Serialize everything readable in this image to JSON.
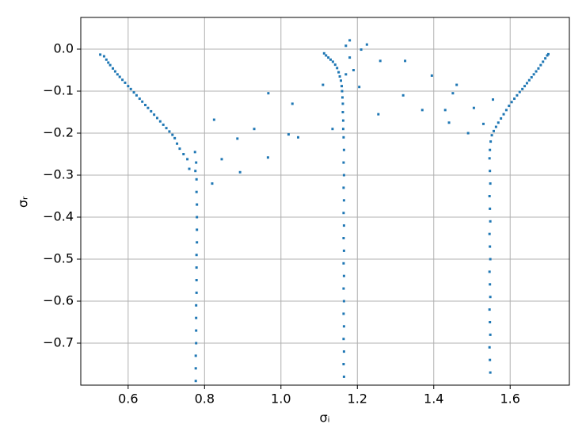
{
  "chart_data": {
    "type": "scatter",
    "xlabel": "σᵢ",
    "ylabel": "σᵣ",
    "color": "#1f77b4",
    "grid": true,
    "xlim": [
      0.476,
      1.755
    ],
    "ylim": [
      -0.8,
      0.0755
    ],
    "xticks": [
      0.6,
      0.8,
      {
        "value": 1,
        "label": "1.0"
      },
      1.2,
      1.4,
      1.6
    ],
    "yticks": [
      {
        "value": 0,
        "label": "0.0"
      },
      {
        "value": -0.1,
        "label": "−0.1"
      },
      {
        "value": -0.2,
        "label": "−0.2"
      },
      {
        "value": -0.3,
        "label": "−0.3"
      },
      {
        "value": -0.4,
        "label": "−0.4"
      },
      {
        "value": -0.5,
        "label": "−0.5"
      },
      {
        "value": -0.6,
        "label": "−0.6"
      },
      {
        "value": -0.7,
        "label": "−0.7"
      }
    ],
    "x": [
      0.527,
      0.537,
      0.543,
      0.548,
      0.553,
      0.56,
      0.566,
      0.572,
      0.578,
      0.585,
      0.592,
      0.6,
      0.607,
      0.615,
      0.622,
      0.63,
      0.637,
      0.645,
      0.652,
      0.66,
      0.668,
      0.676,
      0.684,
      0.692,
      0.7,
      0.708,
      0.716,
      0.722,
      0.728,
      0.735,
      0.745,
      0.755,
      0.76,
      0.775,
      0.778,
      0.776,
      0.779,
      0.779,
      0.78,
      0.78,
      0.78,
      0.78,
      0.779,
      0.779,
      0.779,
      0.779,
      0.778,
      0.778,
      0.778,
      0.778,
      0.777,
      0.777,
      0.777,
      1.113,
      1.118,
      1.124,
      1.13,
      1.136,
      1.142,
      1.147,
      1.151,
      1.154,
      1.157,
      1.159,
      1.16,
      1.161,
      1.162,
      1.162,
      1.163,
      1.163,
      1.164,
      1.165,
      1.164,
      1.165,
      1.164,
      1.165,
      1.164,
      1.165,
      1.164,
      1.165,
      1.164,
      1.165,
      1.164,
      1.165,
      1.164,
      1.165,
      1.164,
      1.165,
      1.164,
      1.165,
      1.7,
      1.697,
      1.692,
      1.686,
      1.68,
      1.674,
      1.668,
      1.662,
      1.656,
      1.65,
      1.644,
      1.638,
      1.632,
      1.625,
      1.618,
      1.611,
      1.604,
      1.597,
      1.59,
      1.583,
      1.576,
      1.569,
      1.563,
      1.557,
      1.552,
      1.549,
      1.547,
      1.546,
      1.547,
      1.548,
      1.546,
      1.547,
      1.548,
      1.546,
      1.547,
      1.548,
      1.546,
      1.547,
      1.548,
      1.546,
      1.547,
      1.548,
      1.546,
      1.547,
      1.548,
      0.825,
      0.82,
      0.845,
      0.886,
      0.893,
      0.93,
      0.966,
      0.967,
      1.02,
      1.03,
      1.045,
      1.11,
      1.135,
      1.17,
      1.18,
      1.18,
      1.19,
      1.17,
      1.205,
      1.21,
      1.225,
      1.255,
      1.26,
      1.32,
      1.325,
      1.37,
      1.395,
      1.43,
      1.44,
      1.45,
      1.46,
      1.49,
      1.505,
      1.53,
      1.555
    ],
    "y": [
      -0.013,
      -0.017,
      -0.025,
      -0.032,
      -0.038,
      -0.046,
      -0.053,
      -0.06,
      -0.066,
      -0.073,
      -0.08,
      -0.088,
      -0.095,
      -0.103,
      -0.11,
      -0.118,
      -0.125,
      -0.133,
      -0.14,
      -0.148,
      -0.156,
      -0.164,
      -0.172,
      -0.18,
      -0.188,
      -0.196,
      -0.204,
      -0.212,
      -0.225,
      -0.237,
      -0.25,
      -0.262,
      -0.285,
      -0.245,
      -0.27,
      -0.29,
      -0.31,
      -0.34,
      -0.37,
      -0.4,
      -0.43,
      -0.46,
      -0.49,
      -0.52,
      -0.55,
      -0.58,
      -0.61,
      -0.64,
      -0.67,
      -0.7,
      -0.73,
      -0.76,
      -0.79,
      -0.01,
      -0.015,
      -0.02,
      -0.025,
      -0.03,
      -0.037,
      -0.045,
      -0.055,
      -0.065,
      -0.075,
      -0.088,
      -0.1,
      -0.115,
      -0.13,
      -0.15,
      -0.17,
      -0.19,
      -0.21,
      -0.24,
      -0.27,
      -0.3,
      -0.33,
      -0.36,
      -0.39,
      -0.42,
      -0.45,
      -0.48,
      -0.51,
      -0.54,
      -0.57,
      -0.6,
      -0.63,
      -0.66,
      -0.69,
      -0.72,
      -0.75,
      -0.78,
      -0.012,
      -0.015,
      -0.022,
      -0.03,
      -0.038,
      -0.046,
      -0.053,
      -0.06,
      -0.067,
      -0.074,
      -0.081,
      -0.088,
      -0.095,
      -0.102,
      -0.11,
      -0.118,
      -0.126,
      -0.135,
      -0.145,
      -0.155,
      -0.165,
      -0.175,
      -0.185,
      -0.195,
      -0.205,
      -0.22,
      -0.24,
      -0.26,
      -0.29,
      -0.32,
      -0.35,
      -0.38,
      -0.41,
      -0.44,
      -0.47,
      -0.5,
      -0.53,
      -0.56,
      -0.59,
      -0.62,
      -0.65,
      -0.68,
      -0.71,
      -0.74,
      -0.77,
      -0.168,
      -0.32,
      -0.262,
      -0.213,
      -0.293,
      -0.19,
      -0.258,
      -0.105,
      -0.203,
      -0.13,
      -0.21,
      -0.085,
      -0.19,
      0.008,
      0.021,
      -0.02,
      -0.05,
      -0.06,
      -0.09,
      -0.001,
      0.011,
      -0.155,
      -0.028,
      -0.11,
      -0.028,
      -0.145,
      -0.063,
      -0.145,
      -0.175,
      -0.105,
      -0.085,
      -0.2,
      -0.14,
      -0.178,
      -0.12
    ]
  }
}
